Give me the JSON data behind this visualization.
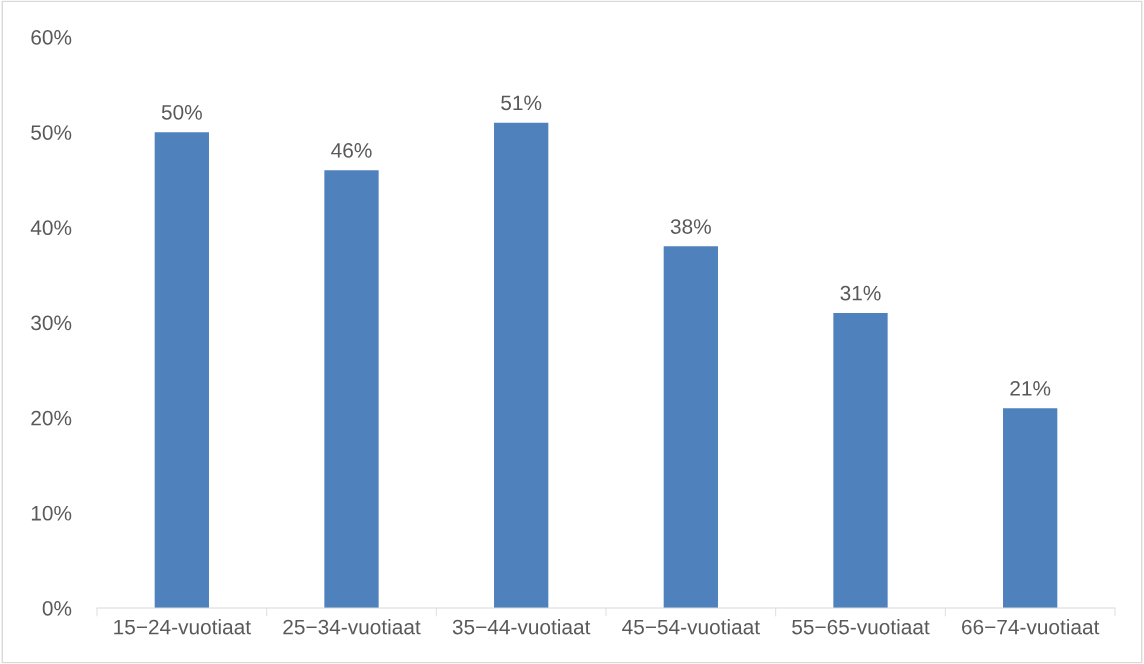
{
  "chart_data": {
    "type": "bar",
    "categories": [
      "15−24-vuotiaat",
      "25−34-vuotiaat",
      "35−44-vuotiaat",
      "45−54-vuotiaat",
      "55−65-vuotiaat",
      "66−74-vuotiaat"
    ],
    "values": [
      50,
      46,
      51,
      38,
      31,
      21
    ],
    "value_labels": [
      "50%",
      "46%",
      "51%",
      "38%",
      "31%",
      "21%"
    ],
    "color": "#4f81bd",
    "ylim": [
      0,
      60
    ],
    "yticks": [
      {
        "value": 0,
        "label": "0%"
      },
      {
        "value": 10,
        "label": "10%"
      },
      {
        "value": 20,
        "label": "20%"
      },
      {
        "value": 30,
        "label": "30%"
      },
      {
        "value": 40,
        "label": "40%"
      },
      {
        "value": 50,
        "label": "50%"
      },
      {
        "value": 60,
        "label": "60%"
      }
    ],
    "grid": false,
    "legend": false
  }
}
